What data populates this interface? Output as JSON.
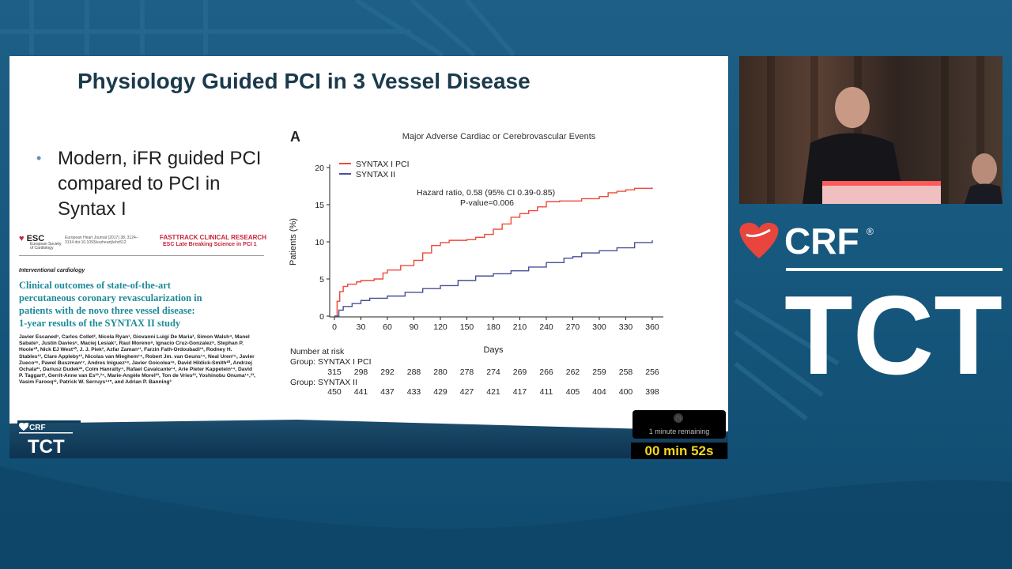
{
  "slide": {
    "title": "Physiology Guided PCI in 3 Vessel Disease",
    "bullet": "Modern, iFR guided PCI compared to PCI in Syntax I"
  },
  "paper": {
    "logo": "ESC",
    "society": "European Society of Cardiology",
    "journal": "European Heart Journal (2017) 38, 3124–3134 doi:10.1093/eurheartj/ehx512",
    "fasttrack": "FASTTRACK CLINICAL RESEARCH",
    "late_breaking": "ESC Late Breaking Science in PCI 1",
    "section": "Interventional cardiology",
    "title_line1": "Clinical outcomes of state-of-the-art",
    "title_line2": "percutaneous coronary revascularization in",
    "title_line3": "patients with de novo three vessel disease:",
    "title_line4": "1-year results of the SYNTAX II study",
    "authors": "Javier Escaned¹, Carlos Collet², Nicola Ryan¹, Giovanni Luigi De Maria³, Simon Walsh⁴, Manel Sabate⁵, Justin Davies⁶, Maciej Lesiak⁷, Raul Moreno⁸, Ignacio Cruz-Gonzalez⁹, Stephan P. Hoole¹⁰, Nick EJ West¹⁰, J. J. Piek², Azfar Zaman¹¹, Farzin Fath-Ordoubadi¹², Rodney H. Stables¹³, Clare Appleby¹³, Nicolas van Mieghem¹⁴, Robert Jm. van Geuns¹⁴, Neal Uren¹⁵, Javier Zueco¹⁶, Pawel Buszman¹⁷, Andres Iniguez¹⁸, Javier Goicolea¹⁹, David Hildick-Smith²⁰, Andrzej Ochala²¹, Dariusz Dudek²², Colm Hanratty⁴, Rafael Cavalcante¹⁴, Arie Pieter Kappetein¹⁴, David P. Taggart³, Gerrit-Anne van Es²³,²⁴, Marie-Angèle Morel²³, Ton de Vries²³, Yoshinobu Onuma¹⁴,²³, Vasim Farooq¹², Patrick W. Serruys¹⁴*, and Adrian P. Banning³"
  },
  "chart_data": {
    "type": "line",
    "panel_label": "A",
    "title": "Major Adverse Cardiac or Cerebrovascular Events",
    "xlabel": "Days",
    "ylabel": "Patients (%)",
    "xlim": [
      0,
      360
    ],
    "ylim": [
      0,
      20
    ],
    "xticks": [
      0,
      30,
      60,
      90,
      120,
      150,
      180,
      210,
      240,
      270,
      300,
      330,
      360
    ],
    "yticks": [
      0,
      5,
      10,
      15,
      20
    ],
    "legend_position": "top-left",
    "annotation_line1": "Hazard ratio, 0.58 (95% CI 0.39-0.85)",
    "annotation_line2": "P-value=0.006",
    "series": [
      {
        "name": "SYNTAX I PCI",
        "color": "#ee4a3c",
        "x": [
          0,
          3,
          6,
          10,
          15,
          25,
          30,
          45,
          55,
          60,
          75,
          90,
          100,
          110,
          120,
          130,
          150,
          160,
          170,
          180,
          190,
          200,
          210,
          220,
          230,
          240,
          255,
          270,
          280,
          300,
          310,
          320,
          330,
          340,
          360
        ],
        "y": [
          0,
          2.0,
          3.3,
          4.0,
          4.3,
          4.6,
          4.8,
          5.0,
          5.8,
          6.2,
          6.8,
          7.5,
          8.5,
          9.5,
          9.9,
          10.2,
          10.3,
          10.6,
          11.0,
          11.7,
          12.4,
          13.3,
          13.8,
          14.2,
          14.7,
          15.4,
          15.5,
          15.5,
          15.8,
          16.1,
          16.6,
          16.8,
          17.0,
          17.2,
          17.3
        ]
      },
      {
        "name": "SYNTAX II",
        "color": "#4a4f96",
        "x": [
          0,
          5,
          10,
          20,
          30,
          40,
          60,
          80,
          100,
          120,
          140,
          160,
          180,
          200,
          220,
          240,
          260,
          270,
          280,
          300,
          320,
          340,
          360
        ],
        "y": [
          0,
          0.8,
          1.3,
          1.7,
          2.1,
          2.4,
          2.7,
          3.2,
          3.7,
          4.1,
          4.8,
          5.4,
          5.7,
          6.1,
          6.6,
          7.2,
          7.8,
          8.0,
          8.5,
          8.8,
          9.2,
          9.9,
          10.2
        ]
      }
    ],
    "risk_table": {
      "header": "Number at risk",
      "groups": [
        {
          "label": "Group: SYNTAX I PCI",
          "values": [
            315,
            298,
            292,
            288,
            280,
            278,
            274,
            269,
            266,
            262,
            259,
            258,
            256
          ]
        },
        {
          "label": "Group: SYNTAX II",
          "values": [
            450,
            441,
            437,
            433,
            429,
            427,
            421,
            417,
            411,
            405,
            404,
            400,
            398
          ]
        }
      ]
    }
  },
  "timer": {
    "remaining": "1 minute remaining",
    "count": "00 min 52s"
  },
  "brand": {
    "crf": "CRF",
    "registered": "®",
    "tct": "TCT",
    "footer_crf": "CRF",
    "footer_tct": "TCT"
  },
  "colors": {
    "title": "#1b3a4c",
    "paper_title": "#1e8a9a",
    "crf_red": "#e8453c",
    "timer_yellow": "#f4d81c"
  }
}
